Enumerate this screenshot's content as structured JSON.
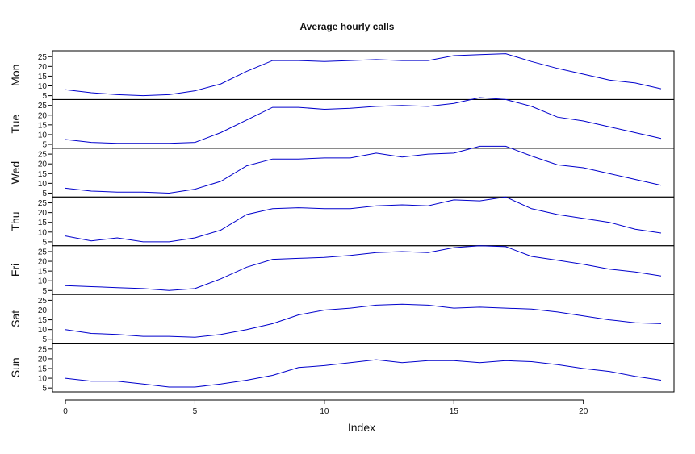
{
  "chart_data": {
    "type": "line",
    "title": "Average hourly calls",
    "xlabel": "Index",
    "x": [
      0,
      1,
      2,
      3,
      4,
      5,
      6,
      7,
      8,
      9,
      10,
      11,
      12,
      13,
      14,
      15,
      16,
      17,
      18,
      19,
      20,
      21,
      22,
      23
    ],
    "x_ticks": [
      0,
      5,
      10,
      15,
      20
    ],
    "y_ticks": [
      5,
      10,
      15,
      20,
      25
    ],
    "ylim": [
      3,
      28
    ],
    "xlim": [
      -0.5,
      23.5
    ],
    "line_color": "#0000cc",
    "grid": false,
    "series": [
      {
        "name": "Mon",
        "values": [
          8,
          6.5,
          5.5,
          5,
          5.5,
          7.5,
          11,
          17.5,
          23,
          23,
          22.5,
          23,
          23.5,
          23,
          23,
          25.5,
          26,
          26.5,
          22.5,
          19,
          16,
          13,
          11.5,
          8.5
        ]
      },
      {
        "name": "Tue",
        "values": [
          7.5,
          6,
          5.5,
          5.5,
          5.5,
          6,
          11,
          17.5,
          24,
          24,
          23,
          23.5,
          24.5,
          25,
          24.5,
          26,
          29,
          28,
          24.5,
          19,
          17,
          14,
          11,
          8
        ]
      },
      {
        "name": "Wed",
        "values": [
          7.5,
          6,
          5.5,
          5.5,
          5,
          7,
          11,
          19,
          22.5,
          22.5,
          23,
          23,
          25.5,
          23.5,
          25,
          25.5,
          29,
          29,
          24,
          19.5,
          18,
          15,
          12,
          9
        ]
      },
      {
        "name": "Thu",
        "values": [
          8,
          5.5,
          7,
          5,
          5,
          7,
          11,
          19,
          22,
          22.5,
          22,
          22,
          23.5,
          24,
          23.5,
          26.5,
          26,
          28,
          22,
          19,
          17,
          15,
          11.5,
          9.5
        ]
      },
      {
        "name": "Fri",
        "values": [
          7.5,
          7,
          6.5,
          6,
          5,
          6,
          11,
          17,
          21,
          21.5,
          22,
          23,
          24.5,
          25,
          24.5,
          27,
          28,
          27.5,
          22.5,
          20.5,
          18.5,
          16,
          14.5,
          12.5
        ]
      },
      {
        "name": "Sat",
        "values": [
          10,
          8,
          7.5,
          6.5,
          6.5,
          6,
          7.5,
          10,
          13,
          17.5,
          20,
          21,
          22.5,
          23,
          22.5,
          21,
          21.5,
          21,
          20.5,
          19,
          17,
          15,
          13.5,
          13
        ]
      },
      {
        "name": "Sun",
        "values": [
          10,
          8.5,
          8.5,
          7,
          5.5,
          5.5,
          7,
          9,
          11.5,
          15.5,
          16.5,
          18,
          19.5,
          18,
          19,
          19,
          18,
          19,
          18.5,
          17,
          15,
          13.5,
          11,
          9
        ]
      }
    ]
  }
}
